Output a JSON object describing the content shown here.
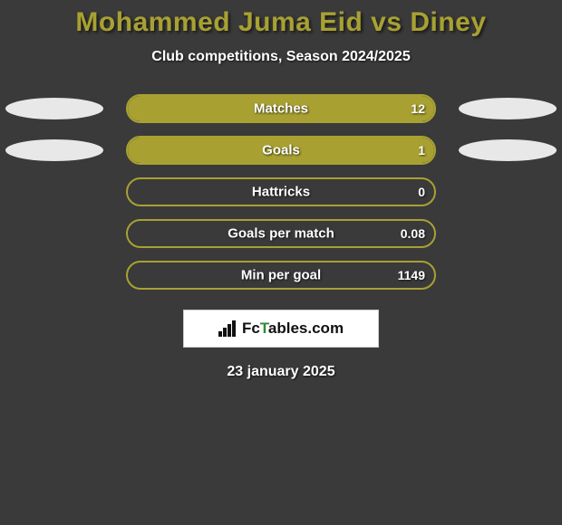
{
  "title": "Mohammed Juma Eid vs Diney",
  "subtitle": "Club competitions, Season 2024/2025",
  "date": "23 january 2025",
  "logo": {
    "pre": "Fc",
    "green": "T",
    "post": "ables.com"
  },
  "colors": {
    "background": "#3a3a3a",
    "accent": "#a8a132",
    "text": "#ffffff",
    "ellipse": "#e8e8e8",
    "logo_bg": "#ffffff",
    "logo_green": "#2e8b3d"
  },
  "stats": [
    {
      "label": "Matches",
      "value": "12",
      "fill_pct": 100,
      "show_ellipses": true
    },
    {
      "label": "Goals",
      "value": "1",
      "fill_pct": 100,
      "show_ellipses": true
    },
    {
      "label": "Hattricks",
      "value": "0",
      "fill_pct": 0,
      "show_ellipses": false
    },
    {
      "label": "Goals per match",
      "value": "0.08",
      "fill_pct": 0,
      "show_ellipses": false
    },
    {
      "label": "Min per goal",
      "value": "1149",
      "fill_pct": 0,
      "show_ellipses": false
    }
  ]
}
